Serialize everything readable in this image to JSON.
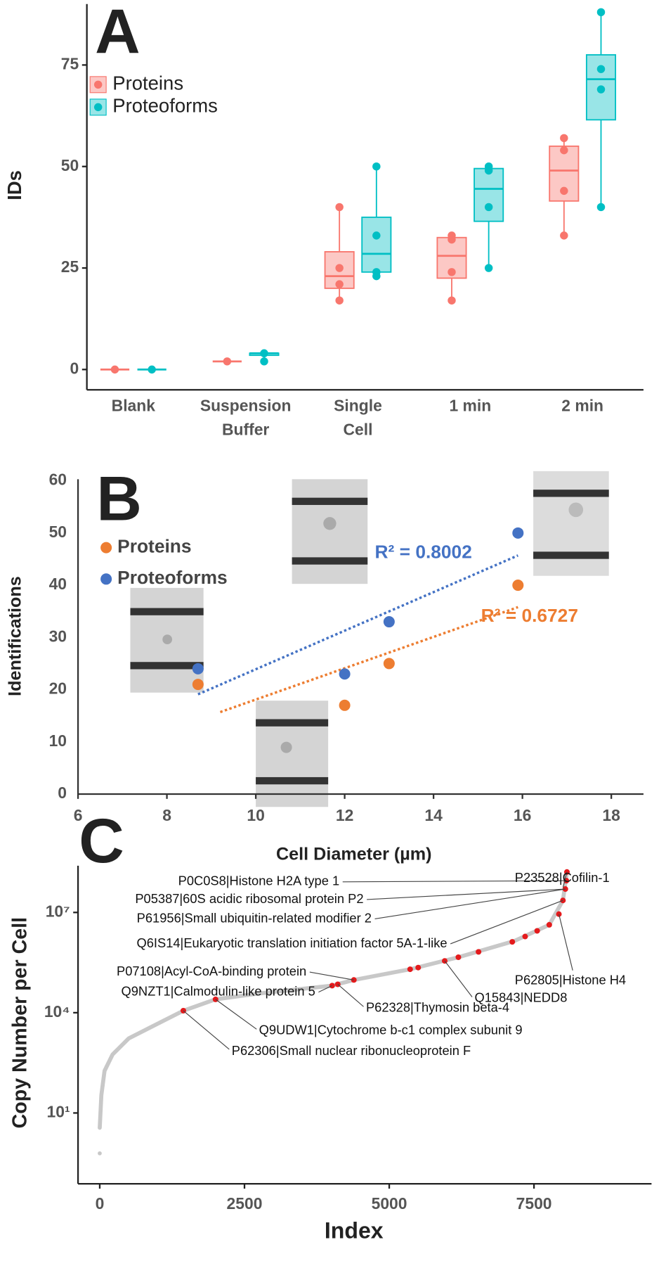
{
  "chart_data": [
    {
      "type": "box",
      "label": "A",
      "ylabel": "IDs",
      "categories": [
        [
          "Blank"
        ],
        [
          "Suspension",
          "Buffer"
        ],
        [
          "Single",
          "Cell"
        ],
        [
          "1 min"
        ],
        [
          "2 min"
        ]
      ],
      "ylim": [
        -5,
        90
      ],
      "yticks": [
        0,
        25,
        50,
        75
      ],
      "series": [
        {
          "name": "Proteins",
          "color": "#f8766d",
          "boxes": [
            {
              "min": 0,
              "q1": 0,
              "median": 0,
              "q3": 0,
              "max": 0,
              "points": [
                0
              ]
            },
            {
              "min": 2,
              "q1": 2,
              "median": 2,
              "q3": 2,
              "max": 2,
              "points": [
                2
              ]
            },
            {
              "min": 17,
              "q1": 20,
              "median": 23,
              "q3": 29,
              "max": 40,
              "points": [
                40,
                25,
                21,
                17
              ]
            },
            {
              "min": 17,
              "q1": 22.5,
              "median": 28,
              "q3": 32.5,
              "max": 33,
              "points": [
                33,
                32,
                24,
                17
              ]
            },
            {
              "min": 33,
              "q1": 41.5,
              "median": 49,
              "q3": 55,
              "max": 57,
              "points": [
                57,
                54,
                44,
                33
              ]
            }
          ]
        },
        {
          "name": "Proteoforms",
          "color": "#00bfc4",
          "boxes": [
            {
              "min": 0,
              "q1": 0,
              "median": 0,
              "q3": 0,
              "max": 0,
              "points": [
                0
              ]
            },
            {
              "min": 2,
              "q1": 3.5,
              "median": 4,
              "q3": 4,
              "max": 4,
              "points": [
                4,
                2
              ]
            },
            {
              "min": 23,
              "q1": 24,
              "median": 28.5,
              "q3": 37.5,
              "max": 50,
              "points": [
                50,
                33,
                24,
                23
              ]
            },
            {
              "min": 25,
              "q1": 36.5,
              "median": 44.5,
              "q3": 49.5,
              "max": 50,
              "points": [
                50,
                49,
                40,
                25
              ]
            },
            {
              "min": 40,
              "q1": 61.5,
              "median": 71.5,
              "q3": 77.5,
              "max": 88,
              "points": [
                88,
                74,
                69,
                40
              ]
            }
          ]
        }
      ]
    },
    {
      "type": "scatter",
      "label": "B",
      "xlabel": "Cell Diameter (µm)",
      "ylabel": "Identifications",
      "xlim": [
        6,
        18
      ],
      "xticks": [
        6,
        8,
        10,
        12,
        14,
        16,
        18
      ],
      "ylim": [
        0,
        60
      ],
      "yticks": [
        0,
        10,
        20,
        30,
        40,
        50,
        60
      ],
      "series": [
        {
          "name": "Proteins",
          "color": "#ed7d31",
          "x": [
            8.7,
            12.0,
            13.0,
            15.9
          ],
          "values": [
            21,
            17,
            25,
            40
          ],
          "trend": [
            [
              9.2,
              15.7
            ],
            [
              15.9,
              35.8
            ]
          ]
        },
        {
          "name": "Proteoforms",
          "color": "#4472c4",
          "x": [
            8.7,
            12.0,
            13.0,
            15.9
          ],
          "values": [
            24,
            23,
            33,
            50
          ],
          "trend": [
            [
              8.7,
              19.1
            ],
            [
              15.9,
              45.7
            ]
          ]
        }
      ],
      "annotations": [
        {
          "text": "R² = 0.8002",
          "color": "#4472c4"
        },
        {
          "text": "R² = 0.6727",
          "color": "#ed7d31"
        }
      ]
    },
    {
      "type": "line",
      "label": "C",
      "xlabel": "Index",
      "ylabel": "Copy Number per Cell",
      "log_y": true,
      "xlim": [
        -375,
        9530
      ],
      "xticks": [
        0,
        2500,
        5000,
        7500
      ],
      "ylim": [
        0.076,
        250000000
      ],
      "yticks": [
        {
          "value": 10,
          "label": "10¹"
        },
        {
          "value": 10000,
          "label": "10⁴"
        },
        {
          "value": 10000000,
          "label": "10⁷"
        }
      ],
      "series": [
        {
          "style": "line",
          "color": "#c8c8c8",
          "x": [
            0,
            28,
            83,
            222,
            500,
            1056,
            1444,
            2000,
            2722,
            4014,
            4389,
            5361,
            6194,
            7167,
            7764,
            8000,
            8069
          ],
          "values": [
            3.6,
            34,
            182,
            562,
            1698,
            5248,
            11482,
            25119,
            37154,
            64565,
            95499,
            199526,
            457088,
            1412538,
            4265795,
            22908677,
            162181010
          ]
        },
        {
          "style": "points",
          "color": "#c8c8c8",
          "x": [
            0
          ],
          "values": [
            0.62
          ]
        },
        {
          "style": "points",
          "color": "#e41a1c",
          "x": [
            1444,
            2000,
            4014,
            4111,
            4389,
            5361,
            5500,
            5958,
            6194,
            6542,
            7125,
            7347,
            7555,
            7764,
            7930,
            8000,
            8042,
            8060,
            8069
          ],
          "values": [
            11482,
            25119,
            64565,
            70795,
            95499,
            199526,
            223872,
            354813,
            457088,
            660693,
            1318257,
            1905461,
            2818383,
            4265795,
            8912509,
            22908677,
            50118723,
            89125094,
            162181010
          ]
        }
      ],
      "annotations": [
        "P0C0S8|Histone H2A type 1",
        "P05387|60S acidic ribosomal protein P2",
        "P61956|Small ubiquitin-related modifier 2",
        "Q6IS14|Eukaryotic translation initiation factor 5A-1-like",
        "P23528|Cofilin-1",
        "P62805|Histone H4",
        "P07108|Acyl-CoA-binding protein",
        "Q9NZT1|Calmodulin-like protein 5",
        "P62328|Thymosin beta-4",
        "Q15843|NEDD8",
        "Q9UDW1|Cytochrome b-c1 complex subunit 9",
        "P62306|Small nuclear ribonucleoprotein F"
      ]
    }
  ]
}
